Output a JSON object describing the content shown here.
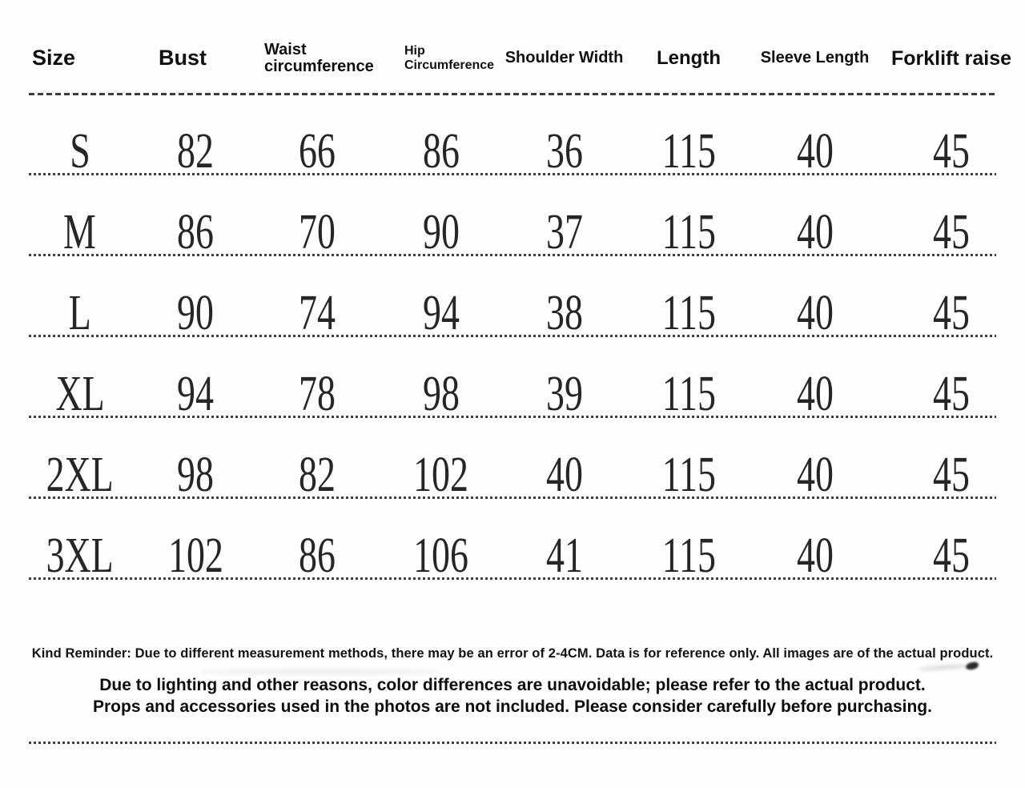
{
  "chart_data": {
    "type": "table",
    "title": "",
    "columns": [
      {
        "key": "size",
        "label": "Size"
      },
      {
        "key": "bust",
        "label": "Bust"
      },
      {
        "key": "waist",
        "label": "Waist circumference"
      },
      {
        "key": "hip",
        "label": "Hip Circumference"
      },
      {
        "key": "shoulder",
        "label": "Shoulder Width"
      },
      {
        "key": "length",
        "label": "Length"
      },
      {
        "key": "sleeve",
        "label": "Sleeve Length"
      },
      {
        "key": "forklift",
        "label": "Forklift raise"
      }
    ],
    "rows": [
      {
        "size": "S",
        "values": [
          "82",
          "66",
          "86",
          "36",
          "115",
          "40",
          "45"
        ]
      },
      {
        "size": "M",
        "values": [
          "86",
          "70",
          "90",
          "37",
          "115",
          "40",
          "45"
        ]
      },
      {
        "size": "L",
        "values": [
          "90",
          "74",
          "94",
          "38",
          "115",
          "40",
          "45"
        ]
      },
      {
        "size": "XL",
        "values": [
          "94",
          "78",
          "98",
          "39",
          "115",
          "40",
          "45"
        ]
      },
      {
        "size": "2XL",
        "values": [
          "98",
          "82",
          "102",
          "40",
          "115",
          "40",
          "45"
        ]
      },
      {
        "size": "3XL",
        "values": [
          "102",
          "86",
          "106",
          "41",
          "115",
          "40",
          "45"
        ]
      }
    ]
  },
  "notes": {
    "kind_reminder": "Kind Reminder: Due to different measurement methods, there may be an error of 2-4CM. Data is for reference only. All images are of the actual product.",
    "line1": "Due to lighting and other reasons, color differences are unavoidable; please refer to the actual product.",
    "line2": "Props and accessories used in the photos are not included. Please consider carefully before purchasing."
  },
  "colors": {
    "background": "#fdfdfd",
    "text": "#161616",
    "data_text": "#262626",
    "separator": "#3c3c3c"
  }
}
